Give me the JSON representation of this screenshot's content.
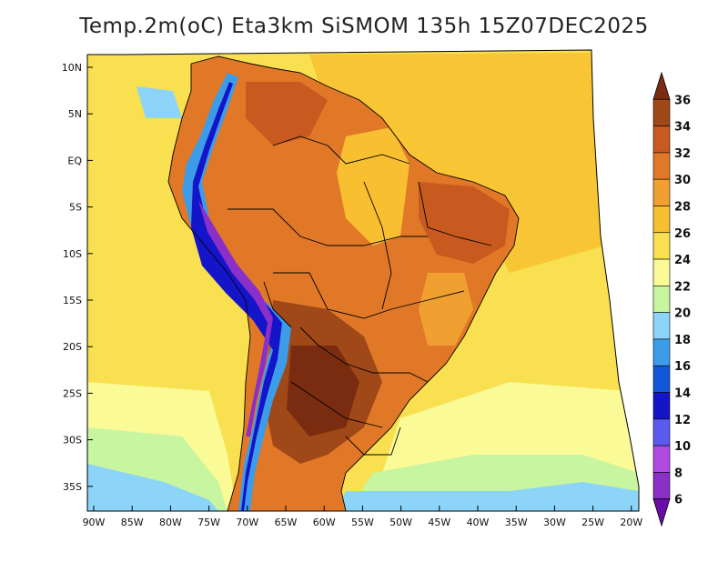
{
  "title": "Temp.2m(oC) Eta3km SiSMOM 135h 15Z07DEC2025",
  "map": {
    "variable": "2m temperature",
    "units": "oC",
    "lat_labels": [
      "10N",
      "5N",
      "EQ",
      "5S",
      "10S",
      "15S",
      "20S",
      "25S",
      "30S",
      "35S"
    ],
    "lon_labels": [
      "90W",
      "85W",
      "80W",
      "75W",
      "70W",
      "65W",
      "60W",
      "55W",
      "50W",
      "45W",
      "40W",
      "35W",
      "30W",
      "25W",
      "20W"
    ],
    "colorbar": {
      "labels": [
        "6",
        "8",
        "10",
        "12",
        "14",
        "16",
        "18",
        "20",
        "22",
        "24",
        "26",
        "28",
        "30",
        "32",
        "34",
        "36"
      ],
      "colors": [
        "#6a0da8",
        "#8a2fc8",
        "#b04ae0",
        "#5a5af0",
        "#1414c8",
        "#1058d8",
        "#3c9ce8",
        "#8cd4f8",
        "#c8f5a0",
        "#fafa96",
        "#f8e050",
        "#f8c030",
        "#f0a030",
        "#e07828",
        "#c85a20",
        "#a04818",
        "#7a2c10"
      ]
    }
  }
}
